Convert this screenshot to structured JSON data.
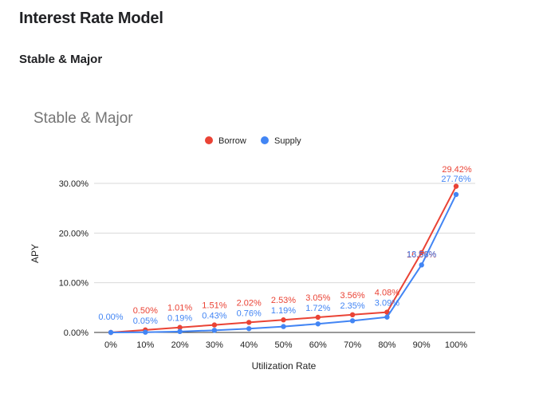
{
  "page": {
    "title": "Interest Rate Model",
    "section_title": "Stable & Major"
  },
  "colors": {
    "borrow": "#ea4335",
    "supply": "#4285f4",
    "grid": "#d9d9d9",
    "axis_text": "#222222",
    "title_text": "#757575"
  },
  "chart_data": {
    "type": "line",
    "title": "Stable & Major",
    "xlabel": "Utilization Rate",
    "ylabel": "APY",
    "categories": [
      "0%",
      "10%",
      "20%",
      "30%",
      "40%",
      "50%",
      "60%",
      "70%",
      "80%",
      "90%",
      "100%"
    ],
    "ylim": [
      0,
      30
    ],
    "yticks": [
      0,
      10,
      20,
      30
    ],
    "ytick_labels": [
      "0.00%",
      "10.00%",
      "20.00%",
      "30.00%"
    ],
    "legend_position": "top-center",
    "grid": true,
    "series": [
      {
        "name": "Borrow",
        "color": "#ea4335",
        "values": [
          0.0,
          0.5,
          1.01,
          1.51,
          2.02,
          2.53,
          3.05,
          3.56,
          4.08,
          16.06,
          29.42
        ],
        "labels": [
          "",
          "0.50%",
          "1.01%",
          "1.51%",
          "2.02%",
          "2.53%",
          "3.05%",
          "3.56%",
          "4.08%",
          "16.06%",
          "29.42%"
        ]
      },
      {
        "name": "Supply",
        "color": "#4285f4",
        "values": [
          0.0,
          0.05,
          0.19,
          0.43,
          0.76,
          1.19,
          1.72,
          2.35,
          3.09,
          13.58,
          27.76
        ],
        "labels": [
          "0.00%",
          "0.05%",
          "0.19%",
          "0.43%",
          "0.76%",
          "1.19%",
          "1.72%",
          "2.35%",
          "3.09%",
          "13.58%",
          "27.76%"
        ]
      }
    ]
  }
}
